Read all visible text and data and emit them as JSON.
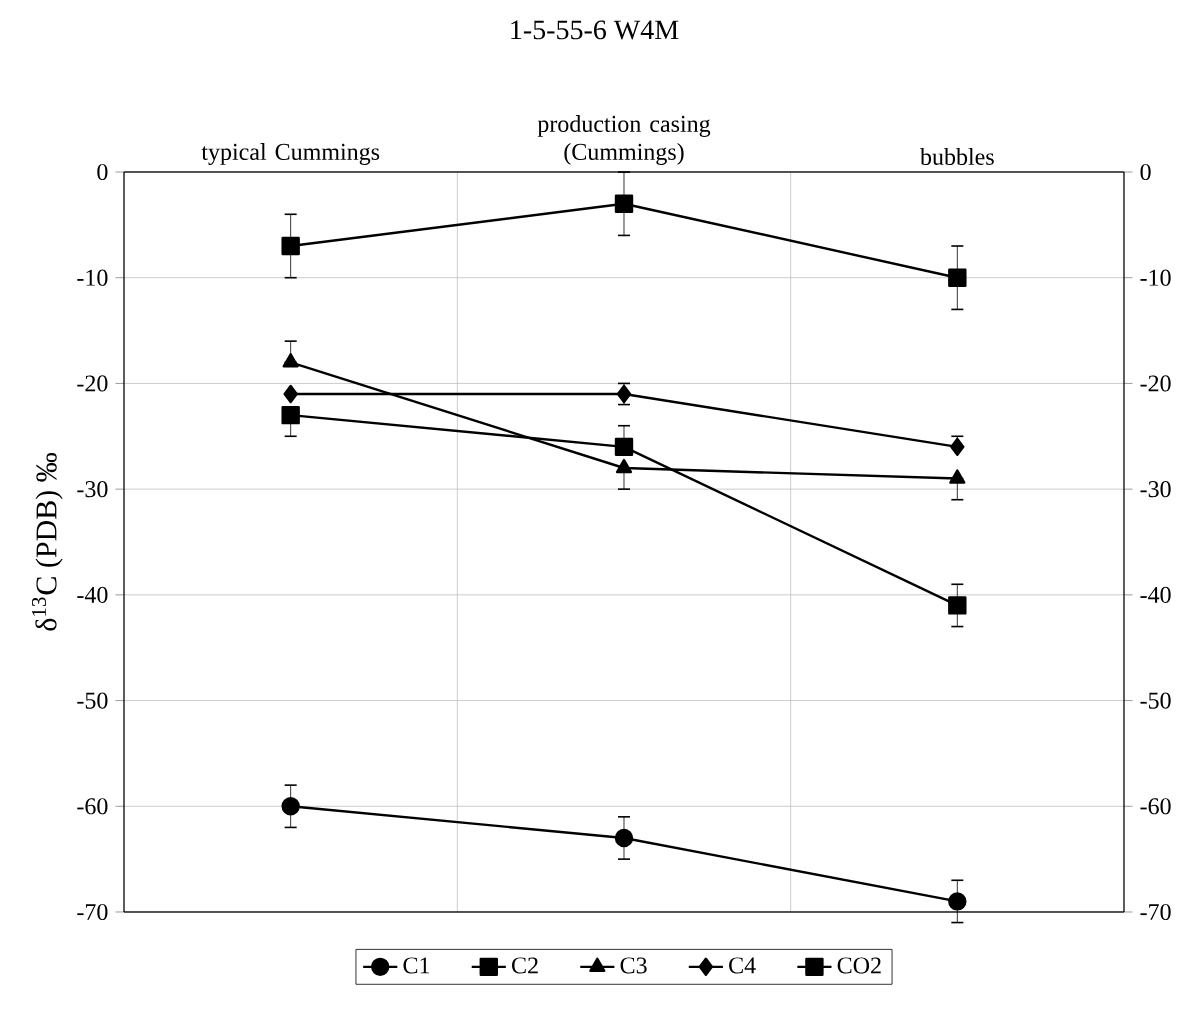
{
  "chart_data": {
    "type": "line",
    "title": "1-5-55-6 W4M",
    "categories": [
      "typical Cummings",
      "production casing (Cummings)",
      "bubbles"
    ],
    "ylabel": "δ$^{13}$C (PDB) ‰",
    "ylim": [
      -70,
      0
    ],
    "yticks": [
      -70,
      -60,
      -50,
      -40,
      -30,
      -20,
      -10,
      0
    ],
    "y2lim": [
      -70,
      0
    ],
    "y2ticks": [
      -70,
      -60,
      -50,
      -40,
      -30,
      -20,
      -10,
      0
    ],
    "grid": true,
    "legend": "bottom",
    "line_style": "solid",
    "series": [
      {
        "name": "C1",
        "color": "#000000",
        "marker": "circle",
        "values": [
          -60,
          -63,
          -69
        ],
        "errors": [
          2,
          2,
          2
        ]
      },
      {
        "name": "C2",
        "color": "#000000",
        "marker": "square",
        "values": [
          -23,
          -26,
          -41
        ],
        "errors": [
          [
            -25,
            -23
          ],
          [
            -26,
            -24
          ],
          2
        ]
      },
      {
        "name": "C3",
        "color": "#000000",
        "marker": "triangle",
        "values": [
          -18,
          -28,
          -29
        ],
        "errors": [
          [
            -18,
            -16
          ],
          [
            -30,
            -28
          ],
          [
            -31,
            -29
          ]
        ]
      },
      {
        "name": "C4",
        "color": "#000000",
        "marker": "diamond",
        "values": [
          -21,
          -21,
          -26
        ],
        "errors": [
          null,
          1,
          [
            -26,
            -25
          ]
        ]
      },
      {
        "name": "CO2",
        "color": "#000000",
        "marker": "square",
        "values": [
          -7,
          -3,
          -10
        ],
        "errors": [
          3,
          3,
          3
        ]
      }
    ]
  }
}
